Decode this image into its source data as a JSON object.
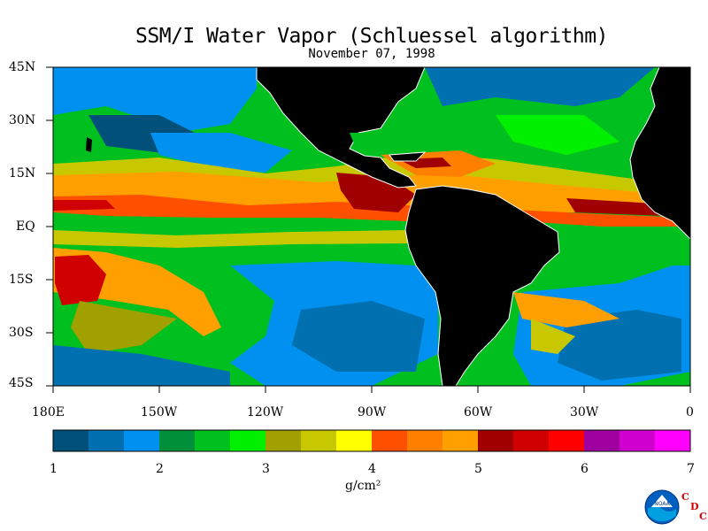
{
  "title": "SSM/I Water Vapor (Schluessel algorithm)",
  "subtitle": "November 07, 1998",
  "lat_labels": [
    "45N",
    "30N",
    "15N",
    "EQ",
    "15S",
    "30S",
    "45S"
  ],
  "lon_labels": [
    "180E",
    "150W",
    "120W",
    "90W",
    "60W",
    "30W",
    "0"
  ],
  "colorbar": {
    "units": "g/cm²",
    "ticks": [
      "1",
      "2",
      "3",
      "4",
      "5",
      "6",
      "7"
    ],
    "colors": [
      "#00507a",
      "#0070b0",
      "#0090f0",
      "#00903a",
      "#00c020",
      "#00f000",
      "#a0a000",
      "#c8c800",
      "#ffff00",
      "#ff5000",
      "#ff8000",
      "#ffa000",
      "#a00000",
      "#d00000",
      "#ff0000",
      "#a000a0",
      "#d000d0",
      "#ff00ff"
    ]
  },
  "logo": {
    "text": "NOAA",
    "cdc": [
      "C",
      "D",
      "C"
    ]
  }
}
